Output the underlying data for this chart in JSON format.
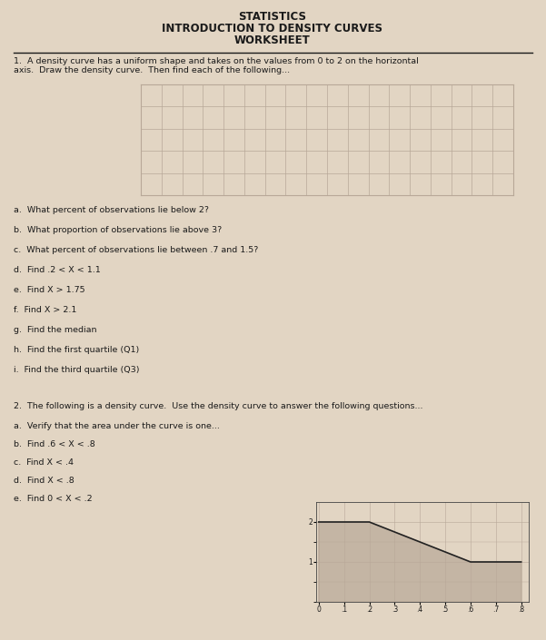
{
  "title1": "STATISTICS",
  "title2": "INTRODUCTION TO DENSITY CURVES",
  "title3": "WORKSHEET",
  "paper_color": "#e2d5c3",
  "grid_color": "#b8a898",
  "text_color": "#1a1a1a",
  "q1_text_line1": "1.  A density curve has a uniform shape and takes on the values from 0 to 2 on the horizontal",
  "q1_text_line2": "axis.  Draw the density curve.  Then find each of the following...",
  "questions_part1": [
    "a.  What percent of observations lie below 2?",
    "b.  What proportion of observations lie above 3?",
    "c.  What percent of observations lie between .7 and 1.5?",
    "d.  Find .2 < X < 1.1",
    "e.  Find X > 1.75",
    "f.  Find X > 2.1",
    "g.  Find the median",
    "h.  Find the first quartile (Q1)",
    "i.  Find the third quartile (Q3)"
  ],
  "q2_text": "2.  The following is a density curve.  Use the density curve to answer the following questions...",
  "questions_part2": [
    "a.  Verify that the area under the curve is one...",
    "b.  Find .6 < X < .8",
    "c.  Find X < .4",
    "d.  Find X < .8",
    "e.  Find 0 < X < .2"
  ],
  "curve2_x": [
    0,
    0.2,
    0.6,
    0.8
  ],
  "curve2_y": [
    2,
    2,
    1,
    1
  ],
  "curve2_xtick_vals": [
    0,
    0.1,
    0.2,
    0.3,
    0.4,
    0.5,
    0.6,
    0.7,
    0.8
  ],
  "curve2_xtick_labels": [
    "0",
    ".1",
    ".2",
    ".3",
    ".4",
    ".5",
    ".6",
    ".7",
    ".8"
  ],
  "curve2_ytick_vals": [
    1,
    2
  ],
  "curve2_ytick_labels": [
    "1",
    "2"
  ],
  "grid1_rows": 5,
  "grid1_cols": 18
}
